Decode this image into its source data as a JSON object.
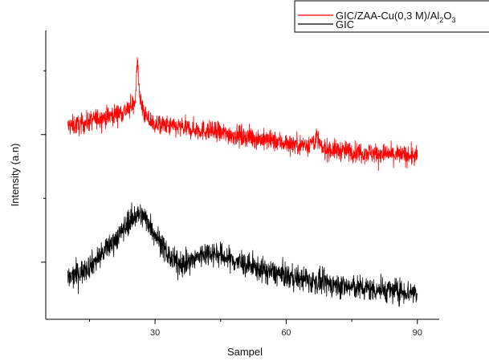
{
  "chart_data": {
    "type": "line",
    "title": "",
    "xlabel": "Sampel",
    "ylabel": "Intensity (a.n)",
    "xlim": [
      5,
      95
    ],
    "xticks": [
      30,
      60,
      90
    ],
    "xtick_labels": [
      "30",
      "60",
      "90"
    ],
    "y_ticks_labeled": false,
    "grid": false,
    "legend_position": "top-right",
    "series": [
      {
        "name": "GIC/ZAA-Cu(0,3 M)/Al2O3",
        "name_parts": {
          "base": "GIC/ZAA-Cu(0,3 M)/Al",
          "sub1": "2",
          "mid": "O",
          "sub2": "3"
        },
        "color": "#ff0000",
        "x": [
          10,
          13,
          16,
          19,
          22,
          24,
          25,
          25.5,
          26,
          26.5,
          27,
          28,
          30,
          33,
          36,
          40,
          45,
          50,
          55,
          60,
          63,
          65,
          66.5,
          67,
          67.5,
          68,
          70,
          75,
          80,
          85,
          90
        ],
        "y": [
          6.05,
          6.1,
          6.25,
          6.35,
          6.45,
          6.55,
          6.7,
          6.9,
          8.0,
          6.9,
          6.6,
          6.3,
          6.1,
          6.05,
          6.0,
          5.95,
          5.85,
          5.75,
          5.65,
          5.55,
          5.5,
          5.5,
          5.62,
          5.72,
          5.58,
          5.38,
          5.35,
          5.3,
          5.25,
          5.2,
          5.15
        ],
        "noise": 0.15
      },
      {
        "name": "GIC",
        "color": "#000000",
        "x": [
          10,
          13,
          16,
          19,
          22,
          24,
          26,
          28,
          30,
          33,
          35,
          38,
          41,
          43,
          46,
          50,
          55,
          60,
          65,
          70,
          75,
          80,
          85,
          90
        ],
        "y": [
          1.5,
          1.7,
          2.0,
          2.4,
          2.85,
          3.2,
          3.45,
          3.3,
          2.85,
          2.2,
          1.95,
          2.0,
          2.25,
          2.3,
          2.15,
          1.95,
          1.75,
          1.6,
          1.45,
          1.35,
          1.25,
          1.2,
          1.15,
          1.1
        ],
        "noise": 0.18
      }
    ]
  }
}
